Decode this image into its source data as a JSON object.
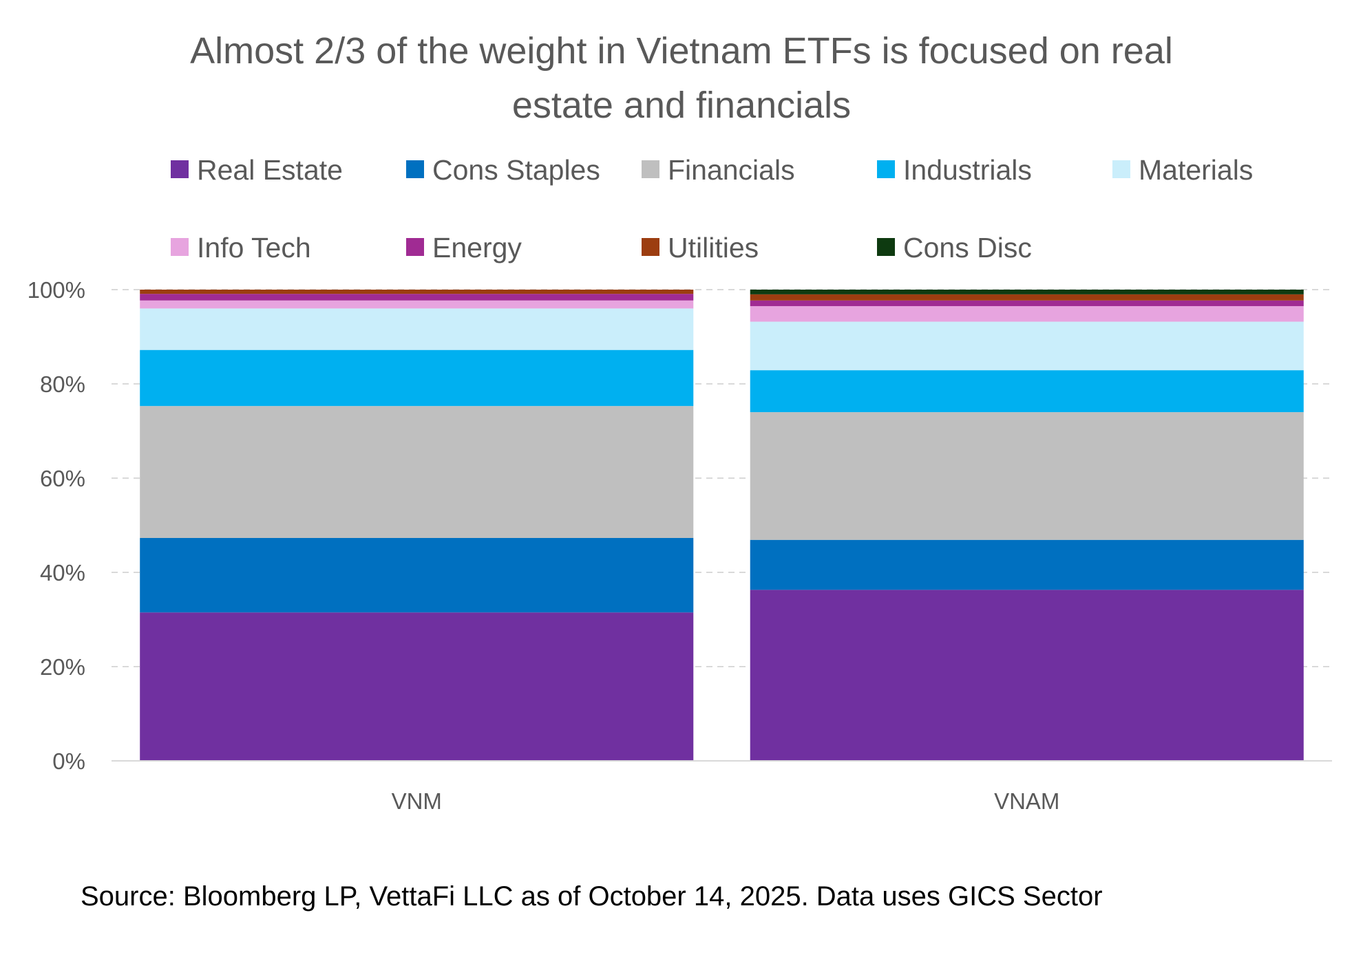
{
  "chart_data": {
    "type": "bar",
    "stacked": true,
    "title": "Almost 2/3 of the weight in Vietnam ETFs is focused on real estate and financials",
    "title_lines": [
      "Almost 2/3 of the weight in Vietnam ETFs is focused on real",
      "estate and financials"
    ],
    "categories": [
      "VNM",
      "VNAM"
    ],
    "ylim": [
      0,
      100
    ],
    "y_ticks": [
      "0%",
      "20%",
      "40%",
      "60%",
      "80%",
      "100%"
    ],
    "y_tick_values": [
      0,
      20,
      40,
      60,
      80,
      100
    ],
    "grid": "horizontal-dashed",
    "legend_position": "top",
    "series": [
      {
        "name": "Real Estate",
        "color": "#7030A0",
        "values": [
          31.5,
          36.3
        ]
      },
      {
        "name": "Cons Staples",
        "color": "#0070C0",
        "values": [
          15.8,
          10.6
        ]
      },
      {
        "name": "Financials",
        "color": "#BFBFBF",
        "values": [
          28.0,
          27.1
        ]
      },
      {
        "name": "Industrials",
        "color": "#00B0F0",
        "values": [
          11.9,
          8.9
        ]
      },
      {
        "name": "Materials",
        "color": "#CAEEFB",
        "values": [
          8.8,
          10.3
        ]
      },
      {
        "name": "Info Tech",
        "color": "#E7A4DF",
        "values": [
          1.7,
          3.3
        ]
      },
      {
        "name": "Energy",
        "color": "#A02B93",
        "values": [
          1.4,
          1.2
        ]
      },
      {
        "name": "Utilities",
        "color": "#9C3D10",
        "values": [
          0.9,
          1.3
        ]
      },
      {
        "name": "Cons Disc",
        "color": "#0E3A10",
        "values": [
          0.0,
          1.0
        ]
      }
    ]
  },
  "source_note": "Source: Bloomberg LP, VettaFi LLC as of October 14, 2025. Data uses GICS Sector"
}
